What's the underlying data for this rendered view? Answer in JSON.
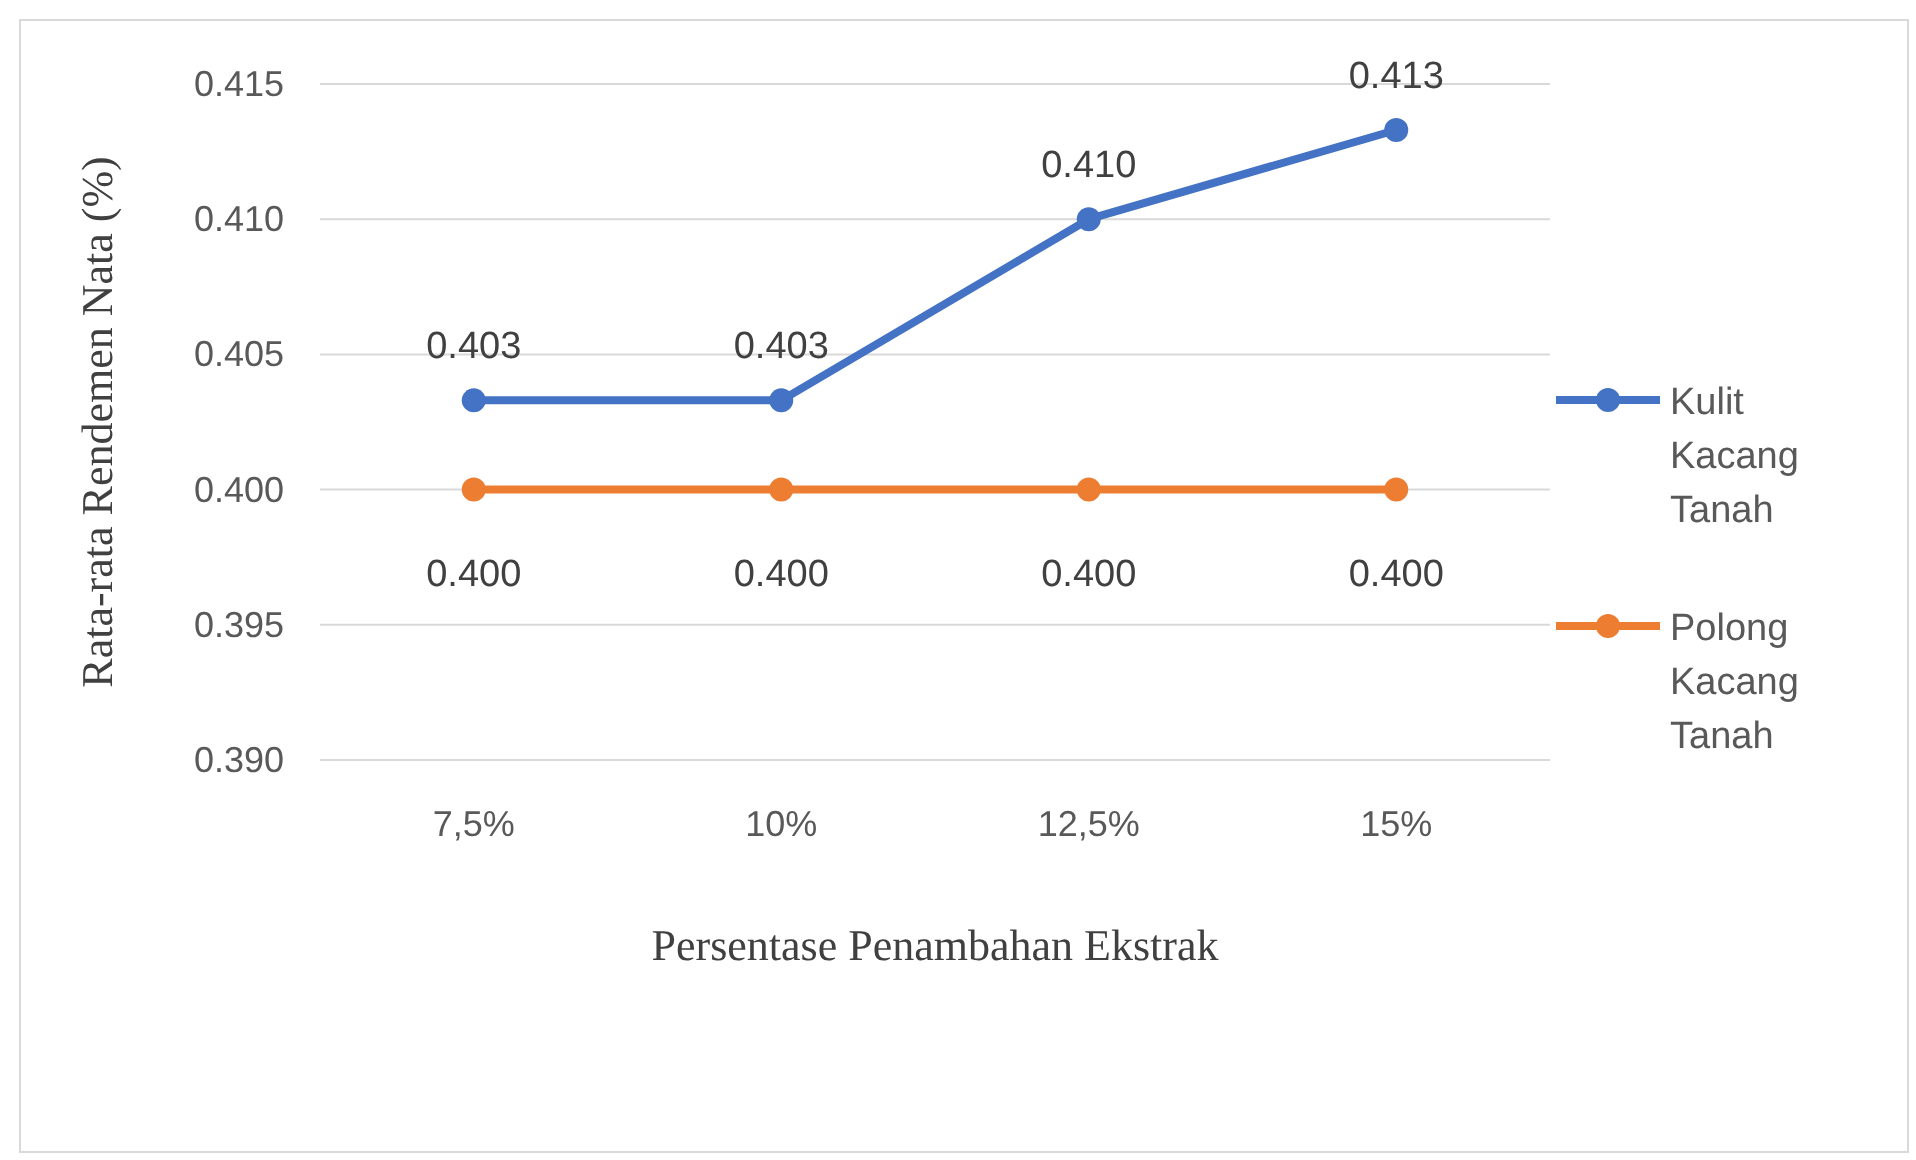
{
  "chart_data": {
    "type": "line",
    "xlabel": "Persentase Penambahan Ekstrak",
    "ylabel": "Rata-rata Rendemen Nata  (%)",
    "categories": [
      "7,5%",
      "10%",
      "12,5%",
      "15%"
    ],
    "series": [
      {
        "name": "Kulit Kacang Tanah",
        "color": "#4472c4",
        "values": [
          0.4033,
          0.4033,
          0.41,
          0.4133
        ],
        "value_labels": [
          "0.403",
          "0.403",
          "0.410",
          "0.413"
        ]
      },
      {
        "name": "Polong Kacang Tanah",
        "color": "#ed7d31",
        "values": [
          0.4,
          0.4,
          0.4,
          0.4
        ],
        "value_labels": [
          "0.400",
          "0.400",
          "0.400",
          "0.400"
        ]
      }
    ],
    "ylim": [
      0.39,
      0.415
    ],
    "yticks": [
      {
        "value": 0.39,
        "label": "0.390"
      },
      {
        "value": 0.395,
        "label": "0.395"
      },
      {
        "value": 0.4,
        "label": "0.400"
      },
      {
        "value": 0.405,
        "label": "0.405"
      },
      {
        "value": 0.41,
        "label": "0.410"
      },
      {
        "value": 0.415,
        "label": "0.415"
      }
    ],
    "grid": "y",
    "legend": "right",
    "marker": "circle",
    "line_style": "solid"
  }
}
